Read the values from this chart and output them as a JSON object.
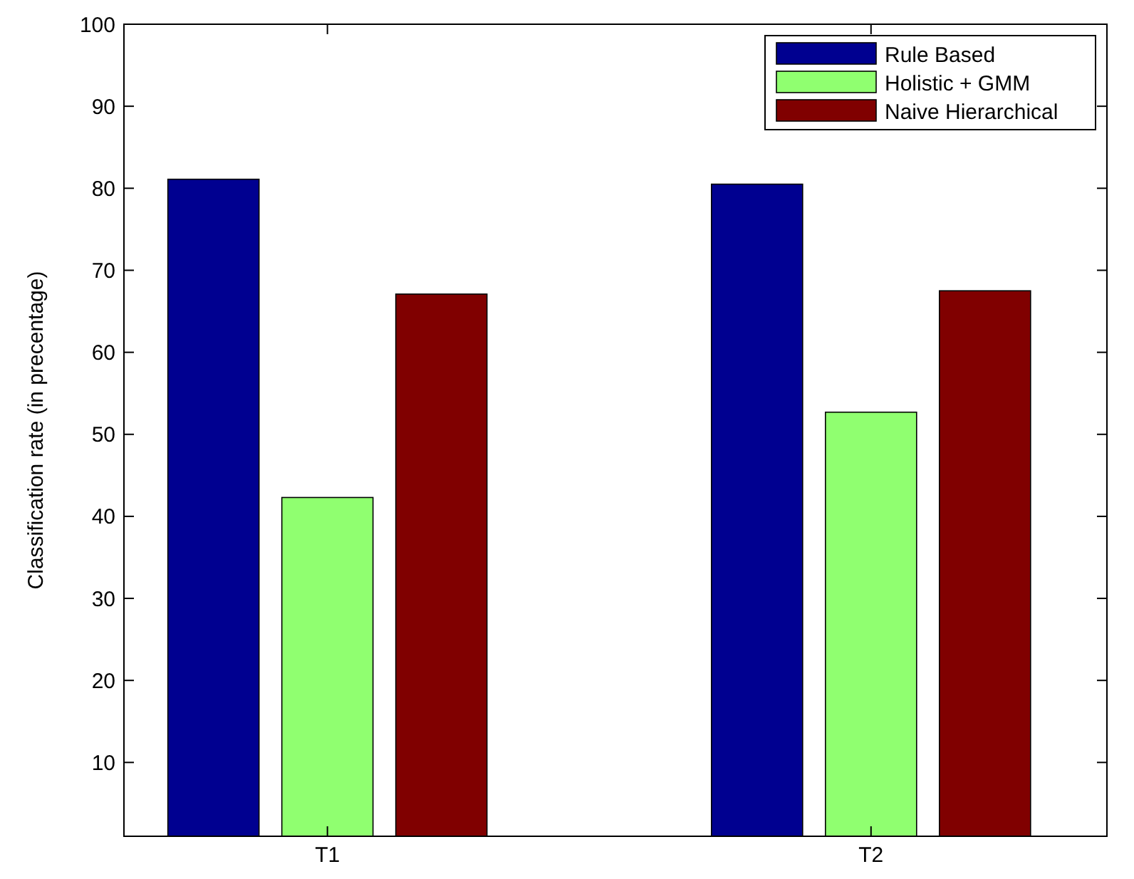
{
  "chart_data": {
    "type": "bar",
    "ylabel": "Classification rate (in precentage)",
    "categories": [
      "T1",
      "T2"
    ],
    "series": [
      {
        "name": "Rule Based",
        "color": "#000090",
        "values": [
          81.1,
          80.5
        ]
      },
      {
        "name": "Holistic + GMM",
        "color": "#90ff70",
        "values": [
          42.3,
          52.7
        ]
      },
      {
        "name": "Naive Hierarchical",
        "color": "#800000",
        "values": [
          67.1,
          67.5
        ]
      }
    ],
    "ylim": [
      1,
      100
    ],
    "yticks": [
      10,
      20,
      30,
      40,
      50,
      60,
      70,
      80,
      90,
      100
    ],
    "grid": false,
    "legend": "top right"
  }
}
